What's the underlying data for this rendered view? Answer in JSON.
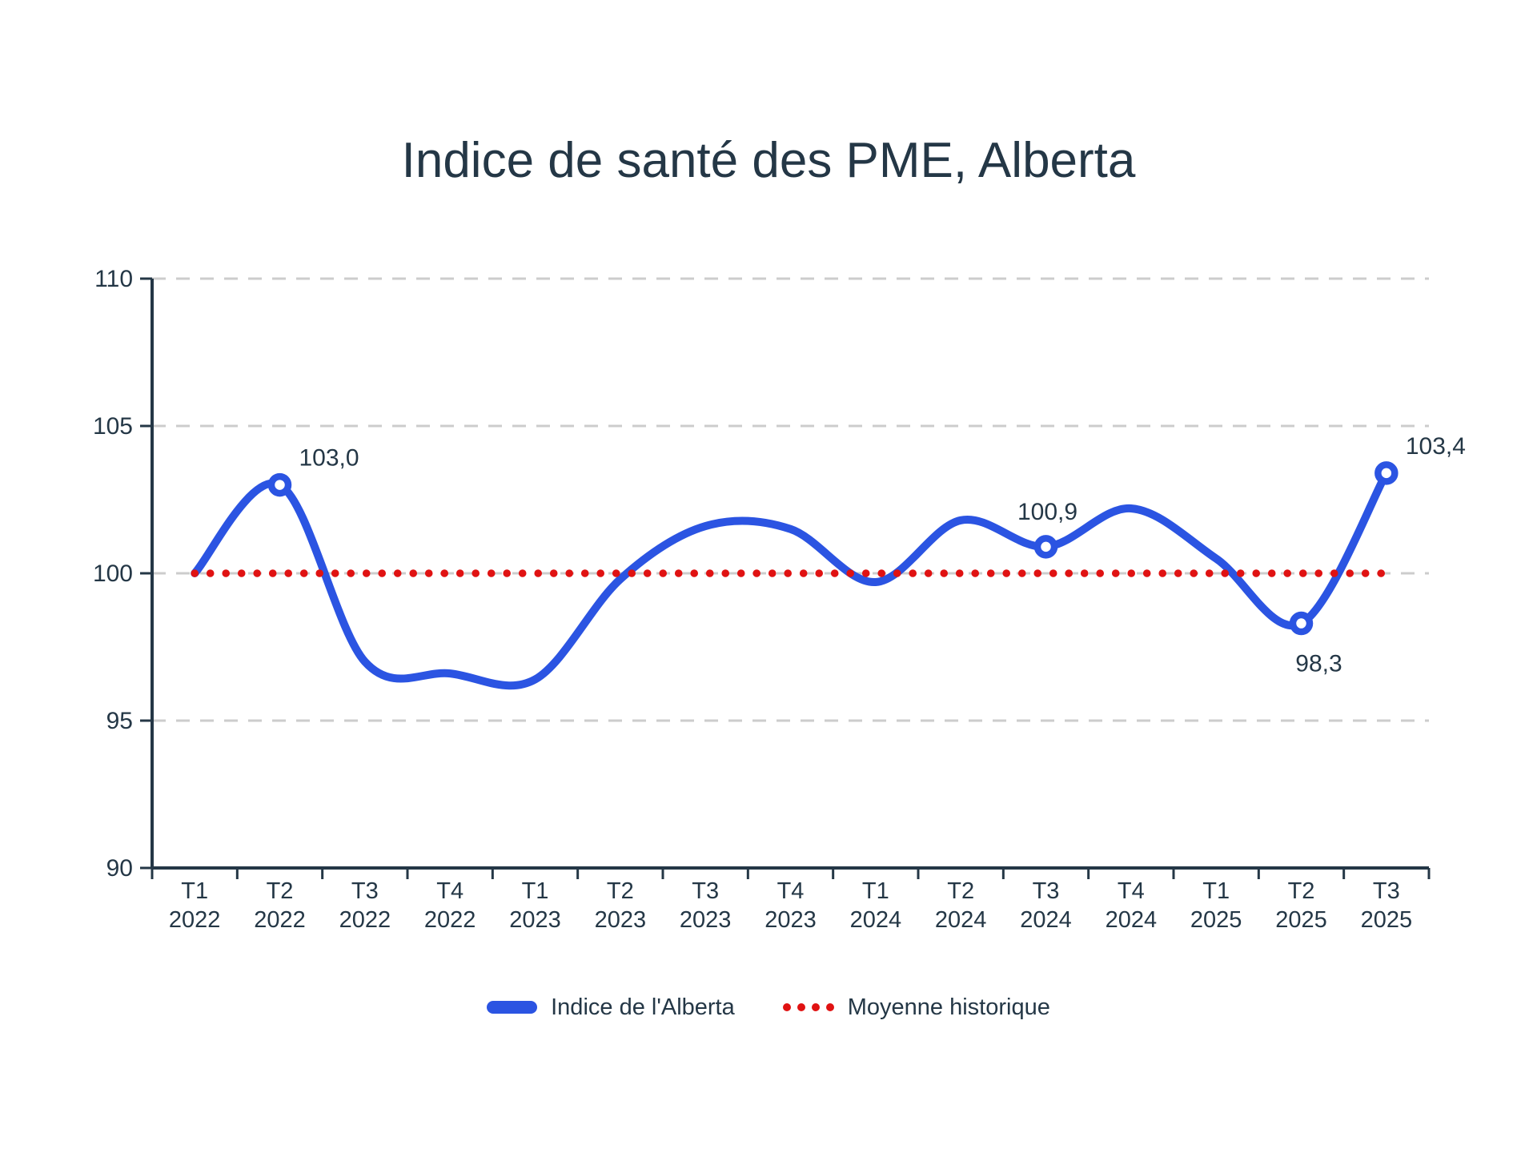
{
  "chart": {
    "title": "Indice de santé des PME, Alberta",
    "legend": [
      {
        "label": "Indice de l'Alberta",
        "swatch": "line",
        "color": "#2b54e2"
      },
      {
        "label": "Moyenne historique",
        "swatch": "dots",
        "color": "#e01212"
      }
    ]
  },
  "chart_data": {
    "type": "line",
    "title": "Indice de santé des PME, Alberta",
    "categories": [
      "T1 2022",
      "T2 2022",
      "T3 2022",
      "T4 2022",
      "T1 2023",
      "T2 2023",
      "T3 2023",
      "T4 2023",
      "T1 2024",
      "T2 2024",
      "T3 2024",
      "T4 2024",
      "T1 2025",
      "T2 2025",
      "T3 2025"
    ],
    "series": [
      {
        "name": "Indice de l'Alberta",
        "type": "smooth-line",
        "color": "#2b54e2",
        "values": [
          100.0,
          103.0,
          97.0,
          96.6,
          96.4,
          99.8,
          101.6,
          101.5,
          99.7,
          101.8,
          100.9,
          102.2,
          100.5,
          98.3,
          103.4
        ]
      },
      {
        "name": "Moyenne historique",
        "type": "dotted-constant",
        "color": "#e01212",
        "value": 100
      }
    ],
    "markers_at": [
      1,
      10,
      13,
      14
    ],
    "annotations": [
      {
        "index": 1,
        "text": "103,0",
        "placement": "above-right"
      },
      {
        "index": 10,
        "text": "100,9",
        "placement": "above"
      },
      {
        "index": 13,
        "text": "98,3",
        "placement": "below"
      },
      {
        "index": 14,
        "text": "103,4",
        "placement": "above-right"
      }
    ],
    "ylim": [
      90,
      110
    ],
    "yticks": [
      90,
      95,
      100,
      105,
      110
    ],
    "grid": {
      "style": "dashed",
      "color": "#cccccc",
      "at": [
        95,
        100,
        105,
        110
      ]
    },
    "legend_position": "bottom",
    "axis_color": "#243746",
    "text_color": "#243746"
  }
}
